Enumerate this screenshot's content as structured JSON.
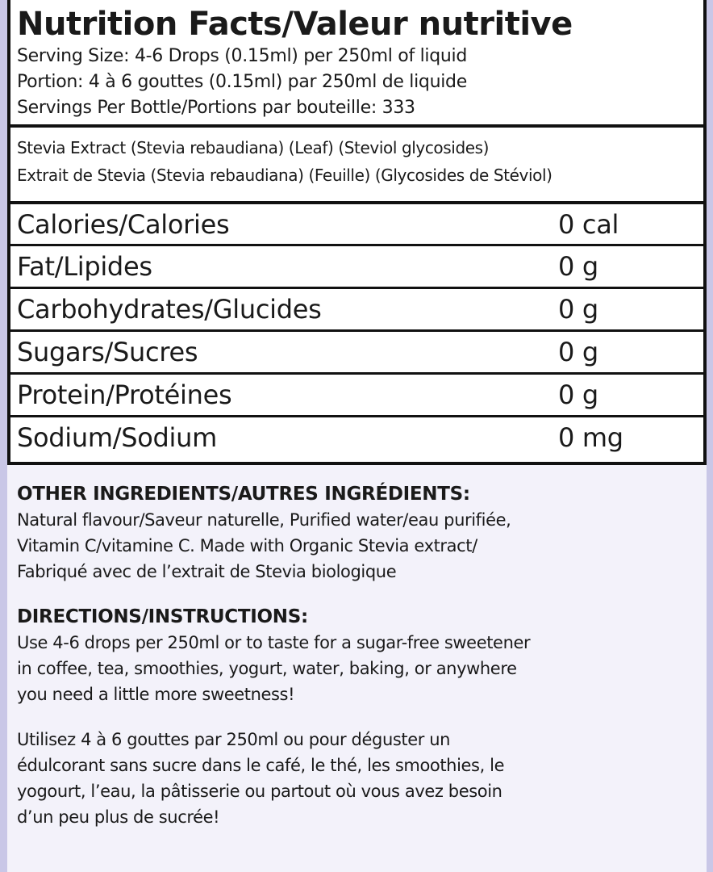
{
  "title": "Nutrition Facts/Valeur nutritive",
  "serving": [
    "Serving Size: 4-6 Drops (0.15ml) per 250ml of liquid",
    "Portion: 4 à 6 gouttes (0.15ml) par 250ml de liquide",
    "Servings Per Bottle/Portions par bouteille: 333"
  ],
  "stevia": [
    "Stevia Extract (Stevia rebaudiana) (Leaf) (Steviol glycosides)",
    "Extrait de Stevia (Stevia rebaudiana) (Feuille) (Glycosides de Stéviol)"
  ],
  "nutrients": [
    {
      "name": "Calories/Calories",
      "value": "0 cal"
    },
    {
      "name": "Fat/Lipides",
      "value": "0 g"
    },
    {
      "name": "Carbohydrates/Glucides",
      "value": "0 g"
    },
    {
      "name": "Sugars/Sucres",
      "value": "0 g"
    },
    {
      "name": "Protein/Protéines",
      "value": "0 g"
    },
    {
      "name": "Sodium/Sodium",
      "value": "0 mg"
    }
  ],
  "other": {
    "heading": "OTHER INGREDIENTS/AUTRES INGRÉDIENTS:",
    "lines": [
      "Natural flavour/Saveur naturelle, Purified water/eau purifiée,",
      "Vitamin C/vitamine C. Made with Organic Stevia extract/",
      "Fabriqué avec de l’extrait de Stevia biologique"
    ]
  },
  "directions": {
    "heading": "DIRECTIONS/INSTRUCTIONS:",
    "en": [
      "Use 4-6 drops per 250ml or to taste for a sugar-free sweetener",
      "in coffee, tea, smoothies, yogurt, water, baking, or anywhere",
      "you need a little more sweetness!"
    ],
    "fr": [
      "Utilisez 4 à 6 gouttes par 250ml ou pour déguster un",
      "édulcorant sans sucre dans le café, le thé, les smoothies, le",
      "yogourt, l’eau, la pâtisserie ou partout où vous avez besoin",
      "d’un peu plus de sucrée!"
    ]
  }
}
